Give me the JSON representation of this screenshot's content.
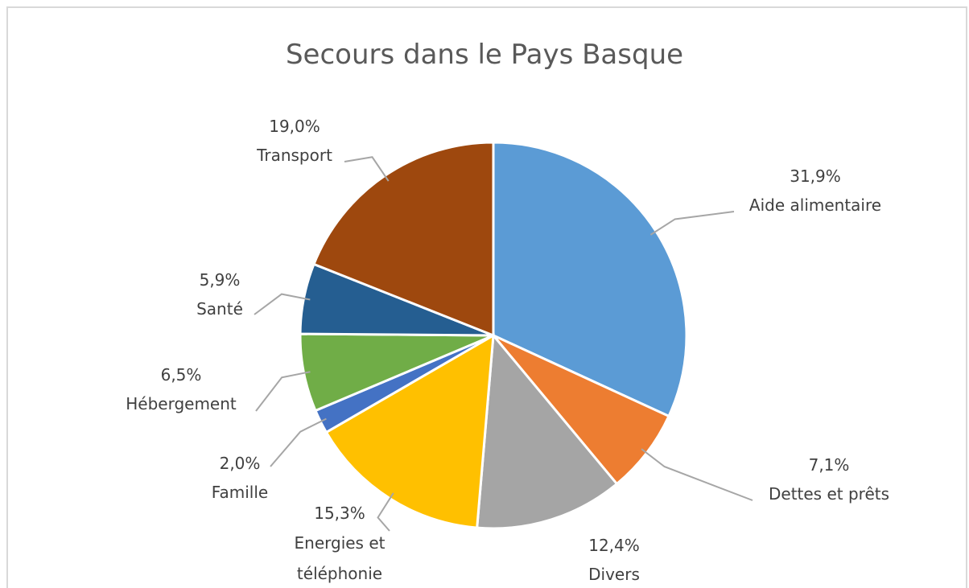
{
  "chart_data": {
    "type": "pie",
    "title": "Secours dans le Pays Basque",
    "categories": [
      "Aide alimentaire",
      "Dettes et prêts",
      "Divers",
      "Energies et téléphonie",
      "Famille",
      "Hébergement",
      "Santé",
      "Transport"
    ],
    "values": [
      31.9,
      7.1,
      12.4,
      15.3,
      2.0,
      6.5,
      5.9,
      19.0
    ],
    "value_labels": [
      "31,9%",
      "7,1%",
      "12,4%",
      "15,3%",
      "2,0%",
      "6,5%",
      "5,9%",
      "19,0%"
    ],
    "colors": [
      "#5B9BD5",
      "#ED7D31",
      "#A5A5A5",
      "#FFC000",
      "#4472C4",
      "#70AD47",
      "#255E91",
      "#9E480E"
    ]
  }
}
